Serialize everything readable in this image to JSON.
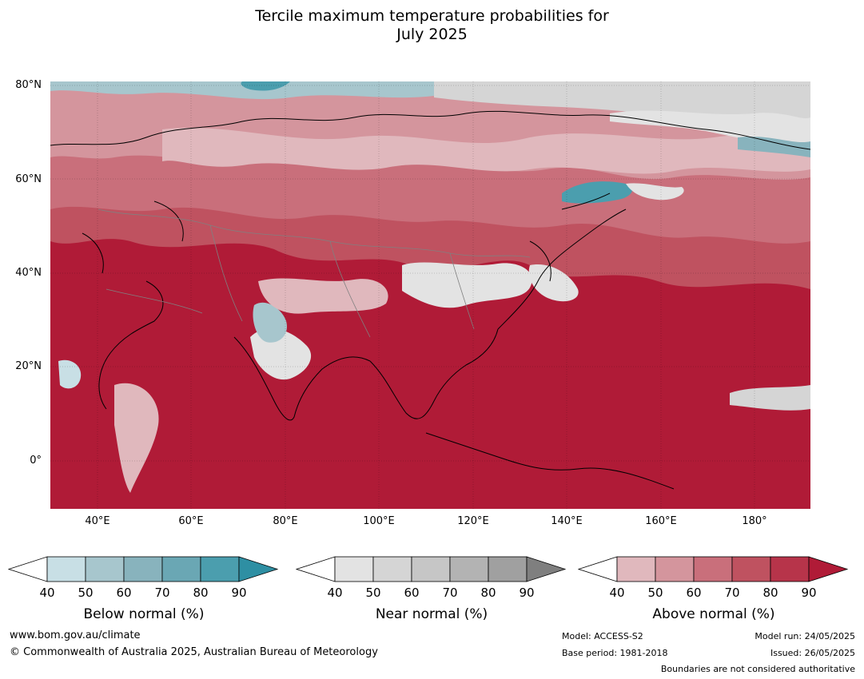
{
  "title_line1": "Tercile maximum temperature probabilities for",
  "title_line2": "July 2025",
  "map": {
    "lat_labels": [
      "80°N",
      "60°N",
      "40°N",
      "20°N",
      "0°"
    ],
    "lon_labels": [
      "40°E",
      "60°E",
      "80°E",
      "100°E",
      "120°E",
      "140°E",
      "160°E",
      "180°"
    ],
    "colors": {
      "above": [
        "#e0b8bd",
        "#d4959d",
        "#c96f7b",
        "#bf5260",
        "#b7344a",
        "#b01b37"
      ],
      "below": [
        "#c8dfe5",
        "#a7c6cd",
        "#88b3bd",
        "#6aa7b4",
        "#4b9eae",
        "#2e8fa3"
      ],
      "near": [
        "#e3e3e3",
        "#d5d5d5",
        "#c6c6c6",
        "#b3b3b3",
        "#a0a0a0",
        "#7f7f7f"
      ],
      "ocean_base": "#b01b37"
    }
  },
  "colorbars": [
    {
      "label": "Below normal (%)",
      "ticks": [
        "40",
        "50",
        "60",
        "70",
        "80",
        "90"
      ],
      "colors": [
        "#ffffff",
        "#c8dfe5",
        "#a7c6cd",
        "#88b3bd",
        "#6aa7b4",
        "#4b9eae",
        "#2e8fa3"
      ]
    },
    {
      "label": "Near normal (%)",
      "ticks": [
        "40",
        "50",
        "60",
        "70",
        "80",
        "90"
      ],
      "colors": [
        "#ffffff",
        "#e3e3e3",
        "#d5d5d5",
        "#c6c6c6",
        "#b3b3b3",
        "#a0a0a0",
        "#7f7f7f"
      ]
    },
    {
      "label": "Above normal (%)",
      "ticks": [
        "40",
        "50",
        "60",
        "70",
        "80",
        "90"
      ],
      "colors": [
        "#ffffff",
        "#e0b8bd",
        "#d4959d",
        "#c96f7b",
        "#bf5260",
        "#b7344a",
        "#b01b37"
      ]
    }
  ],
  "footer": {
    "website": "www.bom.gov.au/climate",
    "copyright": "© Commonwealth of Australia 2025, Australian Bureau of Meteorology",
    "model": "Model: ACCESS-S2",
    "base_period": "Base period: 1981-2018",
    "model_run": "Model run: 24/05/2025",
    "issued": "Issued: 26/05/2025",
    "boundaries_note": "Boundaries are not considered authoritative"
  }
}
